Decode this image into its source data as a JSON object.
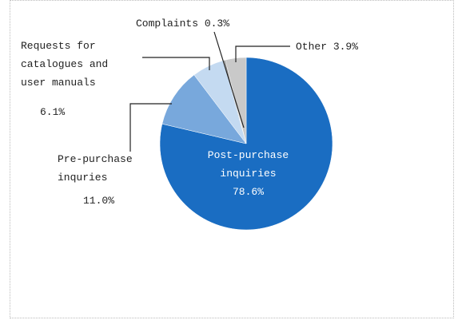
{
  "chart_data": {
    "type": "pie",
    "categories": [
      "Post-purchase inquiries",
      "Pre-purchase inquries",
      "Requests for catalogues and user manuals",
      "Complaints",
      "Other"
    ],
    "values": [
      78.6,
      11.0,
      6.1,
      0.3,
      3.9
    ],
    "value_labels": [
      "78.6%",
      "11.0%",
      "6.1%",
      "0.3%",
      "3.9%"
    ],
    "colors": [
      "#1a6dc2",
      "#78a8dc",
      "#c4daf1",
      "#8c8c8c",
      "#c9c9c9"
    ]
  }
}
